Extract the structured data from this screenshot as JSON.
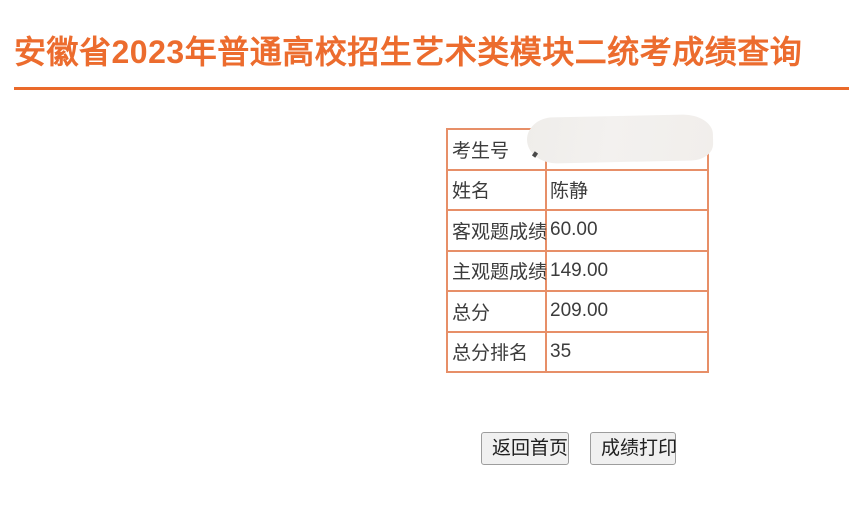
{
  "page": {
    "title": "安徽省2023年普通高校招生艺术类模块二统考成绩查询"
  },
  "colors": {
    "title_orange": "#EC6C2E",
    "rule_orange": "#EA6A2A",
    "table_border_salmon": "#E78F68",
    "cell_text": "#3C3C3C",
    "button_bg": "#F0F0F0",
    "button_border": "#9D9D9D"
  },
  "score_table": {
    "rows": [
      {
        "label": "考生号",
        "value": "",
        "redacted": true
      },
      {
        "label": "姓名",
        "value": "陈静",
        "redacted": false
      },
      {
        "label": "客观题成绩",
        "value": "60.00",
        "redacted": false
      },
      {
        "label": "主观题成绩",
        "value": "149.00",
        "redacted": false
      },
      {
        "label": "总分",
        "value": "209.00",
        "redacted": false
      },
      {
        "label": "总分排名",
        "value": "35",
        "redacted": false
      }
    ]
  },
  "actions": {
    "back_home_label": "返回首页",
    "print_score_label": "成绩打印"
  }
}
